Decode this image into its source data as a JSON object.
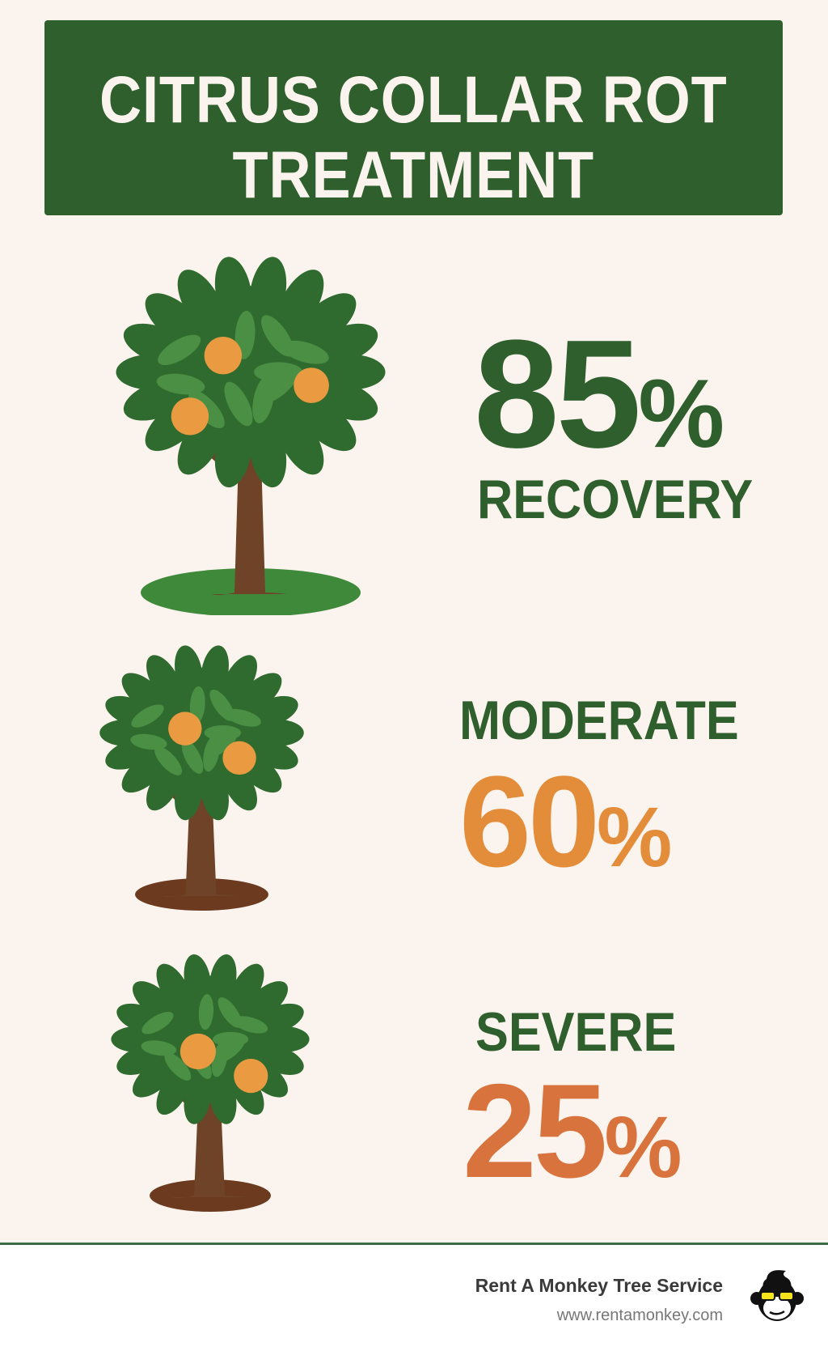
{
  "header": {
    "title_line1": "CITRUS COLLAR ROT",
    "title_line2": "TREATMENT"
  },
  "stats": [
    {
      "value": "85",
      "unit": "%",
      "label": "RECOVERY",
      "color": "#2f5f2d"
    },
    {
      "label": "MODERATE",
      "value": "60",
      "unit": "%",
      "color": "#e38d3b"
    },
    {
      "label": "SEVERE",
      "value": "25",
      "unit": "%",
      "color": "#d9733d"
    }
  ],
  "colors": {
    "primary": "#2f5f2d",
    "background": "#fbf4ee",
    "leaf": "#2f6b2e",
    "leaf_light": "#4a8f43",
    "orange": "#ea9a41",
    "trunk": "#6e4327"
  },
  "footer": {
    "company": "Rent A Monkey Tree Service",
    "url": "www.rentamonkey.com",
    "logo_icon": "monkey-with-sunglasses"
  }
}
